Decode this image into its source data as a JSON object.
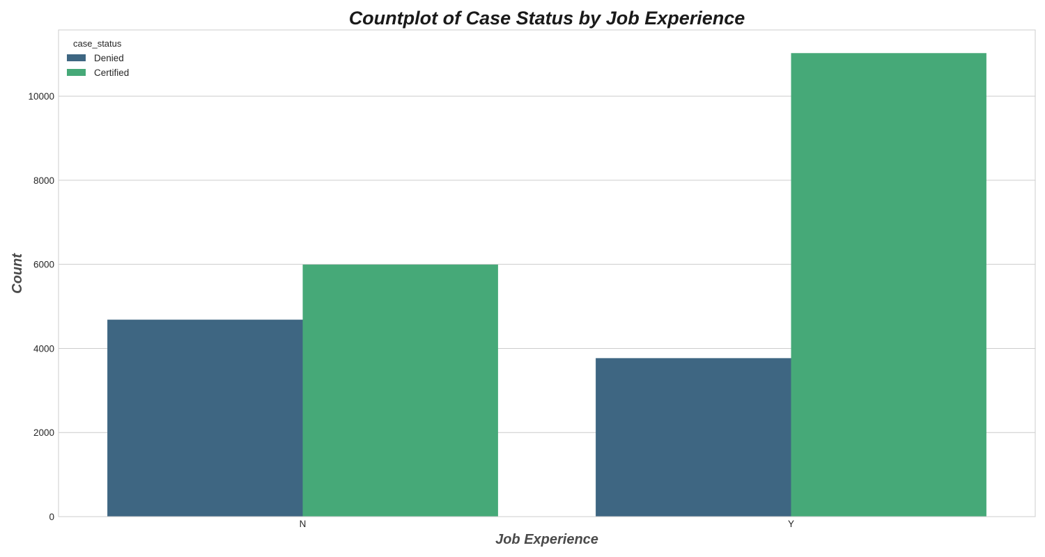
{
  "chart_data": {
    "type": "bar",
    "title": "Countplot of Case Status by Job Experience",
    "xlabel": "Job Experience",
    "ylabel": "Count",
    "categories": [
      "N",
      "Y"
    ],
    "series": [
      {
        "name": "Denied",
        "color": "#3e6682",
        "values": [
          4684,
          3769
        ]
      },
      {
        "name": "Certified",
        "color": "#46a978",
        "values": [
          5994,
          11024
        ]
      }
    ],
    "ylim": [
      0,
      11575
    ],
    "yticks": [
      0,
      2000,
      4000,
      6000,
      8000,
      10000
    ],
    "grid": "horizontal",
    "legend": {
      "title": "case_status",
      "placement": "top-left"
    }
  }
}
